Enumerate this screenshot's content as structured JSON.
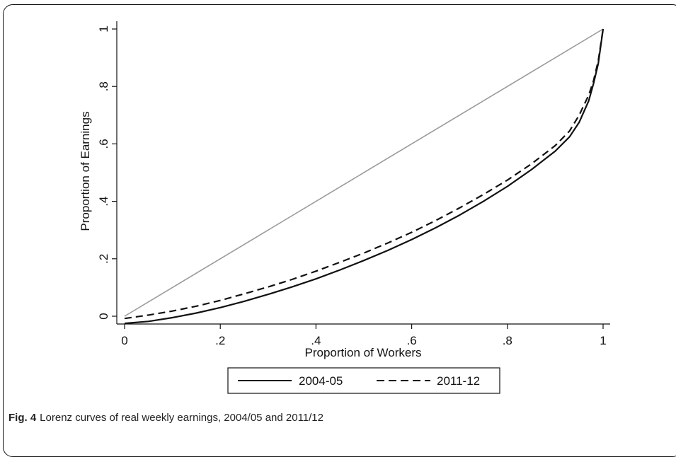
{
  "caption": {
    "label": "Fig. 4",
    "text": "Lorenz curves of real weekly earnings, 2004/05 and 2011/12"
  },
  "chart_data": {
    "type": "line",
    "title": "",
    "xlabel": "Proportion of Workers",
    "ylabel": "Proportion of Earnings",
    "xlim": [
      0,
      1
    ],
    "ylim": [
      -0.02,
      1
    ],
    "x_ticks": [
      {
        "value": 0,
        "label": "0"
      },
      {
        "value": 0.2,
        "label": ".2"
      },
      {
        "value": 0.4,
        "label": ".4"
      },
      {
        "value": 0.6,
        "label": ".6"
      },
      {
        "value": 0.8,
        "label": ".8"
      },
      {
        "value": 1,
        "label": "1"
      }
    ],
    "y_ticks": [
      {
        "value": 0,
        "label": "0"
      },
      {
        "value": 0.2,
        "label": ".2"
      },
      {
        "value": 0.4,
        "label": ".4"
      },
      {
        "value": 0.6,
        "label": ".6"
      },
      {
        "value": 0.8,
        "label": ".8"
      },
      {
        "value": 1,
        "label": "1"
      }
    ],
    "grid": false,
    "legend_position": "bottom",
    "series": [
      {
        "name": "2004-05",
        "style": "solid",
        "color": "#111111",
        "x": [
          0,
          0.05,
          0.1,
          0.15,
          0.2,
          0.25,
          0.3,
          0.35,
          0.4,
          0.45,
          0.5,
          0.55,
          0.6,
          0.65,
          0.7,
          0.75,
          0.8,
          0.85,
          0.9,
          0.93,
          0.95,
          0.97,
          0.98,
          0.99,
          1.0
        ],
        "y": [
          -0.025,
          -0.018,
          -0.005,
          0.011,
          0.03,
          0.052,
          0.076,
          0.102,
          0.13,
          0.161,
          0.194,
          0.229,
          0.267,
          0.308,
          0.352,
          0.4,
          0.452,
          0.51,
          0.575,
          0.625,
          0.675,
          0.75,
          0.81,
          0.88,
          1.0
        ]
      },
      {
        "name": "2011-12",
        "style": "dashed",
        "color": "#111111",
        "x": [
          0,
          0.05,
          0.1,
          0.15,
          0.2,
          0.25,
          0.3,
          0.35,
          0.4,
          0.45,
          0.5,
          0.55,
          0.6,
          0.65,
          0.7,
          0.75,
          0.8,
          0.85,
          0.9,
          0.93,
          0.95,
          0.97,
          0.98,
          0.99,
          1.0
        ],
        "y": [
          -0.008,
          0.004,
          0.018,
          0.035,
          0.055,
          0.078,
          0.102,
          0.128,
          0.157,
          0.188,
          0.22,
          0.255,
          0.292,
          0.333,
          0.377,
          0.424,
          0.474,
          0.53,
          0.594,
          0.645,
          0.7,
          0.77,
          0.82,
          0.89,
          1.0
        ]
      }
    ],
    "equality_line": {
      "color": "#9a9a9a",
      "x": [
        0,
        1
      ],
      "y": [
        0,
        1
      ]
    }
  }
}
